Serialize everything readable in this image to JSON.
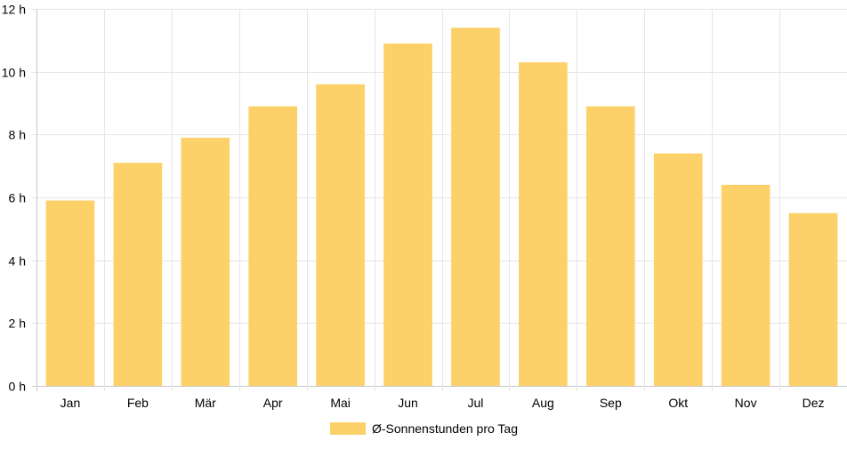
{
  "chart_data": {
    "type": "bar",
    "categories": [
      "Jan",
      "Feb",
      "Mär",
      "Apr",
      "Mai",
      "Jun",
      "Jul",
      "Aug",
      "Sep",
      "Okt",
      "Nov",
      "Dez"
    ],
    "series": [
      {
        "name": "Ø-Sonnenstunden pro Tag",
        "values": [
          5.9,
          7.1,
          7.9,
          8.9,
          9.6,
          10.9,
          11.4,
          10.3,
          8.9,
          7.4,
          6.4,
          5.5
        ]
      }
    ],
    "ylim": [
      0,
      12
    ],
    "yticks": [
      "0 h",
      "2 h",
      "4 h",
      "6 h",
      "8 h",
      "10 h",
      "12 h"
    ],
    "grid": true,
    "legend_position": "bottom",
    "bar_color": "#fdd16a",
    "grid_color": "#e6e6e6"
  }
}
